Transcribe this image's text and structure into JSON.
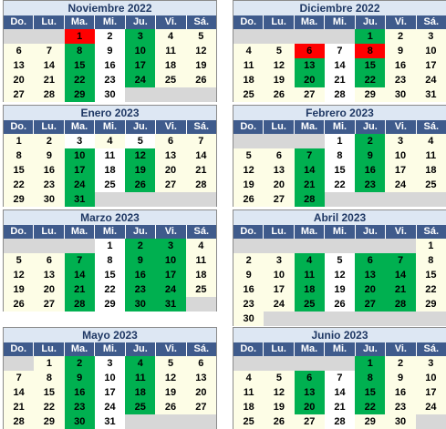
{
  "weekday_headers": [
    "Do.",
    "Lu.",
    "Ma.",
    "Mi.",
    "Ju.",
    "Vi.",
    "Sá."
  ],
  "colors": {
    "title_bg": "#dde7f3",
    "title_text": "#1f3864",
    "header_bg": "#3f5b8c",
    "normal_day": "#fdfde6",
    "wednesday": "#ffffff",
    "empty": "#d7d7d7",
    "marked_green": "#00b050",
    "marked_red": "#ff0000"
  },
  "months": [
    {
      "title": "Noviembre 2022",
      "weeks": [
        [
          [
            "",
            "e"
          ],
          [
            "",
            "e"
          ],
          [
            "1",
            "r"
          ],
          [
            "2",
            "w"
          ],
          [
            "3",
            "g"
          ],
          [
            "4",
            "n"
          ],
          [
            "5",
            "n"
          ]
        ],
        [
          [
            "6",
            "n"
          ],
          [
            "7",
            "n"
          ],
          [
            "8",
            "g"
          ],
          [
            "9",
            "w"
          ],
          [
            "10",
            "g"
          ],
          [
            "11",
            "n"
          ],
          [
            "12",
            "n"
          ]
        ],
        [
          [
            "13",
            "n"
          ],
          [
            "14",
            "n"
          ],
          [
            "15",
            "g"
          ],
          [
            "16",
            "w"
          ],
          [
            "17",
            "g"
          ],
          [
            "18",
            "n"
          ],
          [
            "19",
            "n"
          ]
        ],
        [
          [
            "20",
            "n"
          ],
          [
            "21",
            "n"
          ],
          [
            "22",
            "g"
          ],
          [
            "23",
            "w"
          ],
          [
            "24",
            "g"
          ],
          [
            "25",
            "n"
          ],
          [
            "26",
            "n"
          ]
        ],
        [
          [
            "27",
            "n"
          ],
          [
            "28",
            "n"
          ],
          [
            "29",
            "g"
          ],
          [
            "30",
            "w"
          ],
          [
            "",
            "e"
          ],
          [
            "",
            "e"
          ],
          [
            "",
            "e"
          ]
        ]
      ]
    },
    {
      "title": "Diciembre 2022",
      "weeks": [
        [
          [
            "",
            "e"
          ],
          [
            "",
            "e"
          ],
          [
            "",
            "e"
          ],
          [
            "",
            "e"
          ],
          [
            "1",
            "g"
          ],
          [
            "2",
            "n"
          ],
          [
            "3",
            "n"
          ]
        ],
        [
          [
            "4",
            "n"
          ],
          [
            "5",
            "n"
          ],
          [
            "6",
            "r"
          ],
          [
            "7",
            "w"
          ],
          [
            "8",
            "r"
          ],
          [
            "9",
            "n"
          ],
          [
            "10",
            "n"
          ]
        ],
        [
          [
            "11",
            "n"
          ],
          [
            "12",
            "n"
          ],
          [
            "13",
            "g"
          ],
          [
            "14",
            "w"
          ],
          [
            "15",
            "g"
          ],
          [
            "16",
            "n"
          ],
          [
            "17",
            "n"
          ]
        ],
        [
          [
            "18",
            "n"
          ],
          [
            "19",
            "n"
          ],
          [
            "20",
            "g"
          ],
          [
            "21",
            "w"
          ],
          [
            "22",
            "g"
          ],
          [
            "23",
            "n"
          ],
          [
            "24",
            "n"
          ]
        ],
        [
          [
            "25",
            "n"
          ],
          [
            "26",
            "n"
          ],
          [
            "27",
            "n"
          ],
          [
            "28",
            "w"
          ],
          [
            "29",
            "n"
          ],
          [
            "30",
            "n"
          ],
          [
            "31",
            "n"
          ]
        ]
      ]
    },
    {
      "title": "Enero 2023",
      "weeks": [
        [
          [
            "1",
            "n"
          ],
          [
            "2",
            "n"
          ],
          [
            "3",
            "w"
          ],
          [
            "4",
            "n"
          ],
          [
            "5",
            "w"
          ],
          [
            "6",
            "n"
          ],
          [
            "7",
            "n"
          ]
        ],
        [
          [
            "8",
            "n"
          ],
          [
            "9",
            "n"
          ],
          [
            "10",
            "g"
          ],
          [
            "11",
            "w"
          ],
          [
            "12",
            "g"
          ],
          [
            "13",
            "n"
          ],
          [
            "14",
            "n"
          ]
        ],
        [
          [
            "15",
            "n"
          ],
          [
            "16",
            "n"
          ],
          [
            "17",
            "g"
          ],
          [
            "18",
            "w"
          ],
          [
            "19",
            "g"
          ],
          [
            "20",
            "n"
          ],
          [
            "21",
            "n"
          ]
        ],
        [
          [
            "22",
            "n"
          ],
          [
            "23",
            "n"
          ],
          [
            "24",
            "g"
          ],
          [
            "25",
            "w"
          ],
          [
            "26",
            "g"
          ],
          [
            "27",
            "n"
          ],
          [
            "28",
            "n"
          ]
        ],
        [
          [
            "29",
            "n"
          ],
          [
            "30",
            "n"
          ],
          [
            "31",
            "g"
          ],
          [
            "",
            "e"
          ],
          [
            "",
            "e"
          ],
          [
            "",
            "e"
          ],
          [
            "",
            "e"
          ]
        ]
      ]
    },
    {
      "title": "Febrero 2023",
      "weeks": [
        [
          [
            "",
            "e"
          ],
          [
            "",
            "e"
          ],
          [
            "",
            "e"
          ],
          [
            "1",
            "w"
          ],
          [
            "2",
            "g"
          ],
          [
            "3",
            "n"
          ],
          [
            "4",
            "n"
          ]
        ],
        [
          [
            "5",
            "n"
          ],
          [
            "6",
            "n"
          ],
          [
            "7",
            "g"
          ],
          [
            "8",
            "w"
          ],
          [
            "9",
            "g"
          ],
          [
            "10",
            "n"
          ],
          [
            "11",
            "n"
          ]
        ],
        [
          [
            "12",
            "n"
          ],
          [
            "13",
            "n"
          ],
          [
            "14",
            "g"
          ],
          [
            "15",
            "w"
          ],
          [
            "16",
            "g"
          ],
          [
            "17",
            "n"
          ],
          [
            "18",
            "n"
          ]
        ],
        [
          [
            "19",
            "n"
          ],
          [
            "20",
            "n"
          ],
          [
            "21",
            "g"
          ],
          [
            "22",
            "w"
          ],
          [
            "23",
            "g"
          ],
          [
            "24",
            "n"
          ],
          [
            "25",
            "n"
          ]
        ],
        [
          [
            "26",
            "n"
          ],
          [
            "27",
            "n"
          ],
          [
            "28",
            "g"
          ],
          [
            "",
            "e"
          ],
          [
            "",
            "e"
          ],
          [
            "",
            "e"
          ],
          [
            "",
            "e"
          ]
        ]
      ]
    },
    {
      "title": "Marzo 2023",
      "weeks": [
        [
          [
            "",
            "e"
          ],
          [
            "",
            "e"
          ],
          [
            "",
            "e"
          ],
          [
            "1",
            "w"
          ],
          [
            "2",
            "g"
          ],
          [
            "3",
            "g"
          ],
          [
            "4",
            "n"
          ]
        ],
        [
          [
            "5",
            "n"
          ],
          [
            "6",
            "n"
          ],
          [
            "7",
            "g"
          ],
          [
            "8",
            "w"
          ],
          [
            "9",
            "g"
          ],
          [
            "10",
            "g"
          ],
          [
            "11",
            "n"
          ]
        ],
        [
          [
            "12",
            "n"
          ],
          [
            "13",
            "n"
          ],
          [
            "14",
            "g"
          ],
          [
            "15",
            "w"
          ],
          [
            "16",
            "g"
          ],
          [
            "17",
            "g"
          ],
          [
            "18",
            "n"
          ]
        ],
        [
          [
            "19",
            "n"
          ],
          [
            "20",
            "n"
          ],
          [
            "21",
            "g"
          ],
          [
            "22",
            "w"
          ],
          [
            "23",
            "g"
          ],
          [
            "24",
            "g"
          ],
          [
            "25",
            "n"
          ]
        ],
        [
          [
            "26",
            "n"
          ],
          [
            "27",
            "n"
          ],
          [
            "28",
            "g"
          ],
          [
            "29",
            "w"
          ],
          [
            "30",
            "g"
          ],
          [
            "31",
            "g"
          ],
          [
            "",
            "e"
          ]
        ]
      ]
    },
    {
      "title": "Abril 2023",
      "weeks": [
        [
          [
            "",
            "e"
          ],
          [
            "",
            "e"
          ],
          [
            "",
            "e"
          ],
          [
            "",
            "e"
          ],
          [
            "",
            "e"
          ],
          [
            "",
            "e"
          ],
          [
            "1",
            "n"
          ]
        ],
        [
          [
            "2",
            "n"
          ],
          [
            "3",
            "n"
          ],
          [
            "4",
            "g"
          ],
          [
            "5",
            "w"
          ],
          [
            "6",
            "g"
          ],
          [
            "7",
            "g"
          ],
          [
            "8",
            "n"
          ]
        ],
        [
          [
            "9",
            "n"
          ],
          [
            "10",
            "n"
          ],
          [
            "11",
            "g"
          ],
          [
            "12",
            "w"
          ],
          [
            "13",
            "g"
          ],
          [
            "14",
            "g"
          ],
          [
            "15",
            "n"
          ]
        ],
        [
          [
            "16",
            "n"
          ],
          [
            "17",
            "n"
          ],
          [
            "18",
            "g"
          ],
          [
            "19",
            "w"
          ],
          [
            "20",
            "g"
          ],
          [
            "21",
            "g"
          ],
          [
            "22",
            "n"
          ]
        ],
        [
          [
            "23",
            "n"
          ],
          [
            "24",
            "n"
          ],
          [
            "25",
            "g"
          ],
          [
            "26",
            "w"
          ],
          [
            "27",
            "g"
          ],
          [
            "28",
            "g"
          ],
          [
            "29",
            "n"
          ]
        ],
        [
          [
            "30",
            "n"
          ],
          [
            "",
            "e"
          ],
          [
            "",
            "e"
          ],
          [
            "",
            "e"
          ],
          [
            "",
            "e"
          ],
          [
            "",
            "e"
          ],
          [
            "",
            "e"
          ]
        ]
      ]
    },
    {
      "title": "Mayo 2023",
      "weeks": [
        [
          [
            "",
            "e"
          ],
          [
            "1",
            "n"
          ],
          [
            "2",
            "g"
          ],
          [
            "3",
            "w"
          ],
          [
            "4",
            "g"
          ],
          [
            "5",
            "n"
          ],
          [
            "6",
            "n"
          ]
        ],
        [
          [
            "7",
            "n"
          ],
          [
            "8",
            "n"
          ],
          [
            "9",
            "g"
          ],
          [
            "10",
            "w"
          ],
          [
            "11",
            "g"
          ],
          [
            "12",
            "n"
          ],
          [
            "13",
            "n"
          ]
        ],
        [
          [
            "14",
            "n"
          ],
          [
            "15",
            "n"
          ],
          [
            "16",
            "g"
          ],
          [
            "17",
            "w"
          ],
          [
            "18",
            "g"
          ],
          [
            "19",
            "n"
          ],
          [
            "20",
            "n"
          ]
        ],
        [
          [
            "21",
            "n"
          ],
          [
            "22",
            "n"
          ],
          [
            "23",
            "g"
          ],
          [
            "24",
            "w"
          ],
          [
            "25",
            "g"
          ],
          [
            "26",
            "n"
          ],
          [
            "27",
            "n"
          ]
        ],
        [
          [
            "28",
            "n"
          ],
          [
            "29",
            "n"
          ],
          [
            "30",
            "g"
          ],
          [
            "31",
            "w"
          ],
          [
            "",
            "e"
          ],
          [
            "",
            "e"
          ],
          [
            "",
            "e"
          ]
        ]
      ]
    },
    {
      "title": "Junio 2023",
      "weeks": [
        [
          [
            "",
            "e"
          ],
          [
            "",
            "e"
          ],
          [
            "",
            "e"
          ],
          [
            "",
            "e"
          ],
          [
            "1",
            "g"
          ],
          [
            "2",
            "n"
          ],
          [
            "3",
            "n"
          ]
        ],
        [
          [
            "4",
            "n"
          ],
          [
            "5",
            "n"
          ],
          [
            "6",
            "g"
          ],
          [
            "7",
            "w"
          ],
          [
            "8",
            "g"
          ],
          [
            "9",
            "n"
          ],
          [
            "10",
            "n"
          ]
        ],
        [
          [
            "11",
            "n"
          ],
          [
            "12",
            "n"
          ],
          [
            "13",
            "g"
          ],
          [
            "14",
            "w"
          ],
          [
            "15",
            "g"
          ],
          [
            "16",
            "n"
          ],
          [
            "17",
            "n"
          ]
        ],
        [
          [
            "18",
            "n"
          ],
          [
            "19",
            "n"
          ],
          [
            "20",
            "g"
          ],
          [
            "21",
            "w"
          ],
          [
            "22",
            "g"
          ],
          [
            "23",
            "n"
          ],
          [
            "24",
            "n"
          ]
        ],
        [
          [
            "25",
            "n"
          ],
          [
            "26",
            "n"
          ],
          [
            "27",
            "n"
          ],
          [
            "28",
            "w"
          ],
          [
            "29",
            "n"
          ],
          [
            "30",
            "n"
          ],
          [
            "",
            "e"
          ]
        ]
      ]
    }
  ]
}
